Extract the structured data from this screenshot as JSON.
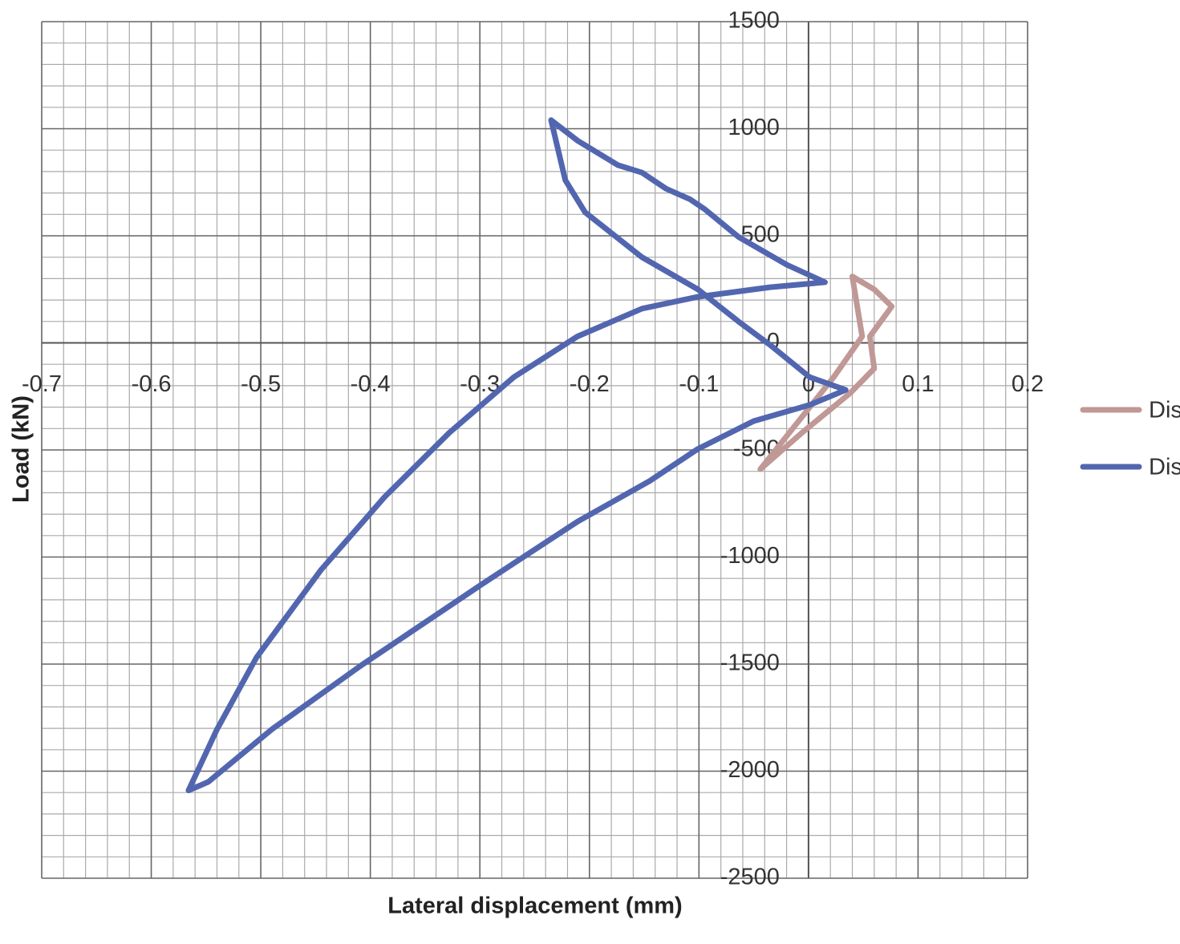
{
  "chart_data": {
    "type": "line",
    "xlabel": "Lateral displacement  (mm)",
    "ylabel": "Load  (kN)",
    "xlim": [
      -0.7,
      0.2
    ],
    "xticks": [
      -0.7,
      -0.6,
      -0.5,
      -0.4,
      -0.3,
      -0.2,
      -0.1,
      0,
      0.1,
      0.2
    ],
    "ylim": [
      -2500,
      1500
    ],
    "yticks": [
      1500,
      1000,
      500,
      0,
      -500,
      -1000,
      -1500,
      -2000,
      -2500
    ],
    "grid": true,
    "minor_grid_divisions": 5,
    "legend": "right",
    "series": [
      {
        "name": "Dis",
        "color": "#c09896",
        "x": [
          -0.044,
          0.023,
          0.049,
          0.04,
          0.06,
          0.076,
          0.056,
          0.06,
          0.038,
          -0.006,
          -0.044
        ],
        "y": [
          -590,
          -160,
          30,
          310,
          250,
          170,
          30,
          -120,
          -235,
          -420,
          -590
        ]
      },
      {
        "name": "Dis",
        "color": "#5266b0",
        "x": [
          0.034,
          0.001,
          -0.035,
          -0.064,
          -0.101,
          -0.152,
          -0.204,
          -0.222,
          -0.235,
          -0.211,
          -0.174,
          -0.152,
          -0.13,
          -0.108,
          -0.095,
          -0.064,
          -0.02,
          0.015,
          -0.035,
          -0.101,
          -0.152,
          -0.211,
          -0.269,
          -0.328,
          -0.387,
          -0.445,
          -0.504,
          -0.54,
          -0.566,
          -0.548,
          -0.49,
          -0.408,
          -0.299,
          -0.211,
          -0.145,
          -0.101,
          -0.05,
          0.001,
          0.034
        ],
        "y": [
          -220,
          -160,
          -10,
          100,
          250,
          400,
          610,
          760,
          1040,
          945,
          830,
          795,
          720,
          670,
          625,
          495,
          365,
          283,
          260,
          215,
          160,
          30,
          -160,
          -420,
          -720,
          -1060,
          -1470,
          -1805,
          -2090,
          -2050,
          -1805,
          -1505,
          -1130,
          -835,
          -645,
          -495,
          -365,
          -290,
          -220
        ]
      }
    ]
  }
}
